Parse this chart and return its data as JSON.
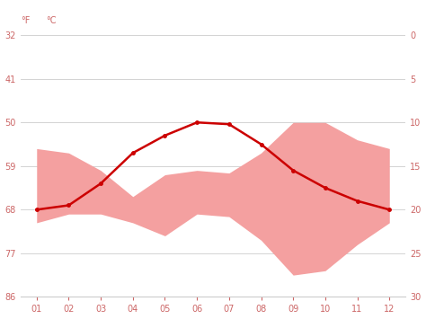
{
  "months": [
    1,
    2,
    3,
    4,
    5,
    6,
    7,
    8,
    9,
    10,
    11,
    12
  ],
  "avg_temp_c": [
    20.0,
    19.5,
    17.0,
    13.5,
    11.5,
    10.0,
    10.2,
    12.5,
    15.5,
    17.5,
    19.0,
    20.0
  ],
  "band_upper_c": [
    13.0,
    13.5,
    15.5,
    18.5,
    16.0,
    15.5,
    15.8,
    13.5,
    10.0,
    10.0,
    12.0,
    13.0
  ],
  "band_lower_c": [
    21.5,
    20.5,
    20.5,
    21.5,
    23.0,
    20.5,
    20.8,
    23.5,
    27.5,
    27.0,
    24.0,
    21.5
  ],
  "line_color": "#cc0000",
  "band_color": "#f4a0a0",
  "background_color": "#ffffff",
  "grid_color": "#cccccc",
  "yticks_c": [
    0,
    5,
    10,
    15,
    20,
    25,
    30
  ],
  "yticks_f": [
    32,
    41,
    50,
    59,
    68,
    77,
    86
  ],
  "tick_label_color": "#cc6666",
  "ylim_c": [
    30,
    -2
  ],
  "month_labels": [
    "01",
    "02",
    "03",
    "04",
    "05",
    "06",
    "07",
    "08",
    "09",
    "10",
    "11",
    "12"
  ]
}
